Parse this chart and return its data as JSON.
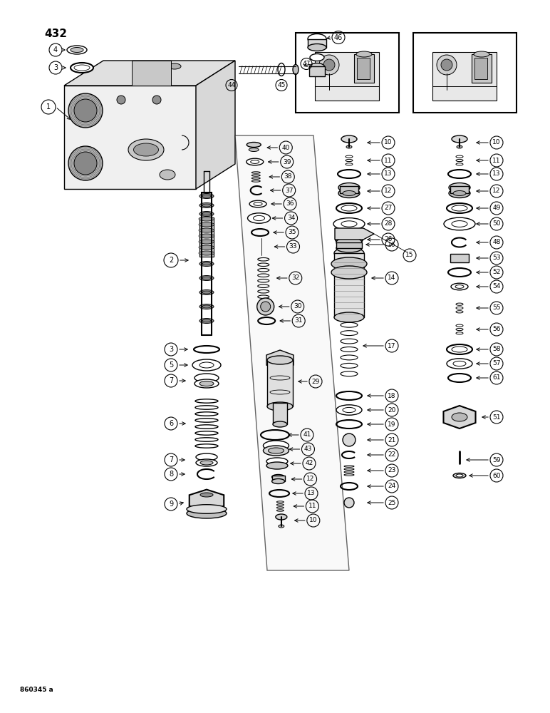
{
  "background_color": "#ffffff",
  "page_number": "432",
  "footer": "860345 a",
  "fig_width": 7.72,
  "fig_height": 10.0,
  "dpi": 100
}
